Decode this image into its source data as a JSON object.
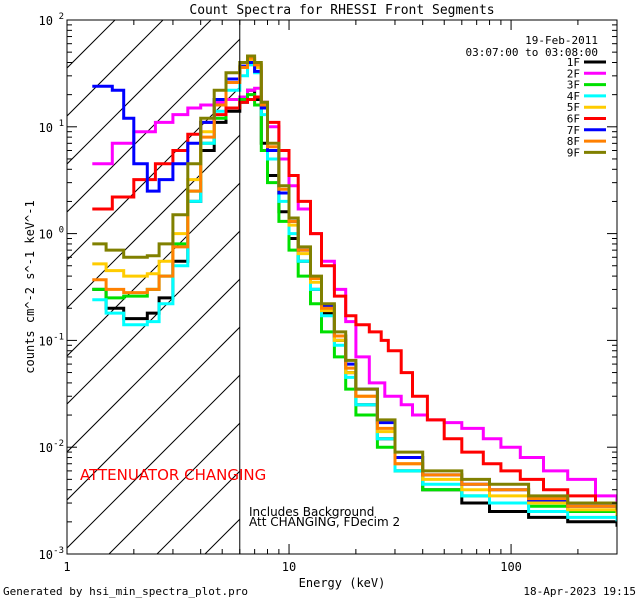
{
  "chart_data": {
    "type": "line",
    "title": "Count Spectra for RHESSI Front Segments",
    "date": "19-Feb-2011",
    "time_range": "03:07:00 to 03:08:00",
    "xlabel": "Energy (keV)",
    "ylabel": "counts cm^-2 s^-1 keV^-1",
    "xscale": "log",
    "yscale": "log",
    "xlim": [
      1,
      300
    ],
    "ylim": [
      0.001,
      100
    ],
    "x_ticks": [
      {
        "value": 1,
        "label": "1"
      },
      {
        "value": 10,
        "label": "10"
      },
      {
        "value": 100,
        "label": "100"
      }
    ],
    "y_ticks": [
      {
        "value": 0.001,
        "base": "10",
        "exp": "-3"
      },
      {
        "value": 0.01,
        "base": "10",
        "exp": "-2"
      },
      {
        "value": 0.1,
        "base": "10",
        "exp": "-1"
      },
      {
        "value": 1,
        "base": "10",
        "exp": "0"
      },
      {
        "value": 10,
        "base": "10",
        "exp": "1"
      },
      {
        "value": 100,
        "base": "10",
        "exp": "2"
      }
    ],
    "shaded_region_keV": [
      1,
      6
    ],
    "vertical_line_keV": 6,
    "annotations": {
      "attenuator": "ATTENUATOR CHANGING",
      "background": "Includes Background",
      "att_info": "Att CHANGING, FDecim 2"
    },
    "series": [
      {
        "name": "1F",
        "color": "#000000",
        "points": [
          [
            1.3,
            0.3
          ],
          [
            1.5,
            0.2
          ],
          [
            1.8,
            0.16
          ],
          [
            2.3,
            0.18
          ],
          [
            2.6,
            0.25
          ],
          [
            3.0,
            0.55
          ],
          [
            3.5,
            2.0
          ],
          [
            4,
            6
          ],
          [
            4.6,
            11
          ],
          [
            5.2,
            14
          ],
          [
            6,
            17
          ],
          [
            6.5,
            22
          ],
          [
            7,
            18
          ],
          [
            7.5,
            7
          ],
          [
            8,
            3.5
          ],
          [
            9,
            1.6
          ],
          [
            10,
            0.9
          ],
          [
            11,
            0.55
          ],
          [
            12.5,
            0.3
          ],
          [
            14,
            0.18
          ],
          [
            16,
            0.1
          ],
          [
            18,
            0.05
          ],
          [
            20,
            0.025
          ],
          [
            25,
            0.012
          ],
          [
            30,
            0.006
          ],
          [
            40,
            0.004
          ],
          [
            60,
            0.003
          ],
          [
            80,
            0.0025
          ],
          [
            120,
            0.0022
          ],
          [
            180,
            0.002
          ],
          [
            300,
            0.0018
          ]
        ]
      },
      {
        "name": "2F",
        "color": "#ff00ff",
        "points": [
          [
            1.3,
            4.5
          ],
          [
            1.6,
            7
          ],
          [
            2,
            9
          ],
          [
            2.5,
            11
          ],
          [
            3,
            13
          ],
          [
            3.5,
            15
          ],
          [
            4,
            16
          ],
          [
            4.6,
            17
          ],
          [
            5.2,
            18
          ],
          [
            6,
            19
          ],
          [
            6.5,
            22
          ],
          [
            7,
            23
          ],
          [
            7.5,
            17
          ],
          [
            8,
            10
          ],
          [
            9,
            5
          ],
          [
            10,
            2.8
          ],
          [
            11,
            1.7
          ],
          [
            12.5,
            1.0
          ],
          [
            14,
            0.55
          ],
          [
            16,
            0.3
          ],
          [
            18,
            0.15
          ],
          [
            20,
            0.07
          ],
          [
            23,
            0.04
          ],
          [
            27,
            0.03
          ],
          [
            32,
            0.025
          ],
          [
            36,
            0.02
          ],
          [
            42,
            0.018
          ],
          [
            50,
            0.017
          ],
          [
            60,
            0.015
          ],
          [
            75,
            0.012
          ],
          [
            90,
            0.01
          ],
          [
            110,
            0.008
          ],
          [
            140,
            0.006
          ],
          [
            180,
            0.005
          ],
          [
            240,
            0.0035
          ],
          [
            300,
            0.003
          ]
        ]
      },
      {
        "name": "3F",
        "color": "#00e000",
        "points": [
          [
            1.3,
            0.3
          ],
          [
            1.5,
            0.25
          ],
          [
            1.8,
            0.26
          ],
          [
            2.3,
            0.3
          ],
          [
            2.6,
            0.4
          ],
          [
            3.0,
            0.8
          ],
          [
            3.5,
            2.5
          ],
          [
            4,
            7
          ],
          [
            4.6,
            12
          ],
          [
            5.2,
            15
          ],
          [
            6,
            18
          ],
          [
            6.5,
            20
          ],
          [
            7,
            16
          ],
          [
            7.5,
            6
          ],
          [
            8,
            3
          ],
          [
            9,
            1.3
          ],
          [
            10,
            0.7
          ],
          [
            11,
            0.4
          ],
          [
            12.5,
            0.22
          ],
          [
            14,
            0.12
          ],
          [
            16,
            0.07
          ],
          [
            18,
            0.035
          ],
          [
            20,
            0.02
          ],
          [
            25,
            0.01
          ],
          [
            30,
            0.006
          ],
          [
            40,
            0.004
          ],
          [
            60,
            0.0035
          ],
          [
            80,
            0.003
          ],
          [
            120,
            0.0028
          ],
          [
            180,
            0.0025
          ],
          [
            300,
            0.0022
          ]
        ]
      },
      {
        "name": "4F",
        "color": "#00ffff",
        "points": [
          [
            1.3,
            0.24
          ],
          [
            1.5,
            0.18
          ],
          [
            1.8,
            0.14
          ],
          [
            2.3,
            0.15
          ],
          [
            2.6,
            0.22
          ],
          [
            3.0,
            0.5
          ],
          [
            3.5,
            2.0
          ],
          [
            4,
            7
          ],
          [
            4.6,
            14
          ],
          [
            5.2,
            22
          ],
          [
            6,
            30
          ],
          [
            6.5,
            38
          ],
          [
            7,
            32
          ],
          [
            7.5,
            13
          ],
          [
            8,
            5
          ],
          [
            9,
            2
          ],
          [
            10,
            1.0
          ],
          [
            11,
            0.55
          ],
          [
            12.5,
            0.3
          ],
          [
            14,
            0.17
          ],
          [
            16,
            0.09
          ],
          [
            18,
            0.045
          ],
          [
            20,
            0.025
          ],
          [
            25,
            0.012
          ],
          [
            30,
            0.006
          ],
          [
            40,
            0.0045
          ],
          [
            60,
            0.0035
          ],
          [
            80,
            0.003
          ],
          [
            120,
            0.0025
          ],
          [
            180,
            0.0022
          ],
          [
            300,
            0.002
          ]
        ]
      },
      {
        "name": "5F",
        "color": "#ffcc00",
        "points": [
          [
            1.3,
            0.52
          ],
          [
            1.5,
            0.45
          ],
          [
            1.8,
            0.4
          ],
          [
            2.3,
            0.42
          ],
          [
            2.6,
            0.55
          ],
          [
            3.0,
            1.0
          ],
          [
            3.5,
            3.2
          ],
          [
            4,
            9
          ],
          [
            4.6,
            18
          ],
          [
            5.2,
            28
          ],
          [
            6,
            36
          ],
          [
            6.5,
            42
          ],
          [
            7,
            36
          ],
          [
            7.5,
            15
          ],
          [
            8,
            6
          ],
          [
            9,
            2.4
          ],
          [
            10,
            1.2
          ],
          [
            11,
            0.65
          ],
          [
            12.5,
            0.35
          ],
          [
            14,
            0.19
          ],
          [
            16,
            0.1
          ],
          [
            18,
            0.05
          ],
          [
            20,
            0.03
          ],
          [
            25,
            0.014
          ],
          [
            30,
            0.007
          ],
          [
            40,
            0.005
          ],
          [
            60,
            0.004
          ],
          [
            80,
            0.0035
          ],
          [
            120,
            0.003
          ],
          [
            180,
            0.0026
          ],
          [
            300,
            0.0023
          ]
        ]
      },
      {
        "name": "6F",
        "color": "#ff0000",
        "points": [
          [
            1.3,
            1.7
          ],
          [
            1.6,
            2.2
          ],
          [
            2,
            3.2
          ],
          [
            2.5,
            4.5
          ],
          [
            3,
            6
          ],
          [
            3.5,
            8.5
          ],
          [
            4,
            11
          ],
          [
            4.6,
            13
          ],
          [
            5.2,
            15
          ],
          [
            6,
            17
          ],
          [
            6.5,
            18
          ],
          [
            7,
            19
          ],
          [
            7.5,
            16
          ],
          [
            8,
            11
          ],
          [
            9,
            6
          ],
          [
            10,
            3.5
          ],
          [
            11,
            2
          ],
          [
            12.5,
            1.0
          ],
          [
            14,
            0.5
          ],
          [
            16,
            0.26
          ],
          [
            18,
            0.17
          ],
          [
            20,
            0.14
          ],
          [
            23,
            0.12
          ],
          [
            26,
            0.1
          ],
          [
            28,
            0.08
          ],
          [
            32,
            0.05
          ],
          [
            36,
            0.03
          ],
          [
            42,
            0.018
          ],
          [
            50,
            0.012
          ],
          [
            60,
            0.009
          ],
          [
            75,
            0.007
          ],
          [
            90,
            0.006
          ],
          [
            110,
            0.005
          ],
          [
            140,
            0.004
          ],
          [
            180,
            0.0035
          ],
          [
            240,
            0.003
          ],
          [
            300,
            0.0028
          ]
        ]
      },
      {
        "name": "7F",
        "color": "#0000ff",
        "points": [
          [
            1.3,
            24
          ],
          [
            1.6,
            22
          ],
          [
            1.8,
            12
          ],
          [
            2,
            4.5
          ],
          [
            2.3,
            2.5
          ],
          [
            2.6,
            3.2
          ],
          [
            3.0,
            4.5
          ],
          [
            3.5,
            7
          ],
          [
            4,
            11
          ],
          [
            4.6,
            18
          ],
          [
            5.2,
            28
          ],
          [
            6,
            37
          ],
          [
            6.5,
            40
          ],
          [
            7,
            33
          ],
          [
            7.5,
            15
          ],
          [
            8,
            6
          ],
          [
            9,
            2.4
          ],
          [
            10,
            1.3
          ],
          [
            11,
            0.7
          ],
          [
            12.5,
            0.38
          ],
          [
            14,
            0.21
          ],
          [
            16,
            0.11
          ],
          [
            18,
            0.06
          ],
          [
            20,
            0.035
          ],
          [
            25,
            0.017
          ],
          [
            30,
            0.008
          ],
          [
            40,
            0.0055
          ],
          [
            60,
            0.0045
          ],
          [
            80,
            0.004
          ],
          [
            120,
            0.0032
          ],
          [
            180,
            0.0028
          ],
          [
            300,
            0.0025
          ]
        ]
      },
      {
        "name": "8F",
        "color": "#ff8000",
        "points": [
          [
            1.3,
            0.37
          ],
          [
            1.5,
            0.3
          ],
          [
            1.8,
            0.28
          ],
          [
            2.3,
            0.3
          ],
          [
            2.6,
            0.4
          ],
          [
            3.0,
            0.75
          ],
          [
            3.5,
            2.5
          ],
          [
            4,
            8
          ],
          [
            4.6,
            16
          ],
          [
            5.2,
            26
          ],
          [
            6,
            36
          ],
          [
            6.5,
            44
          ],
          [
            7,
            38
          ],
          [
            7.5,
            16
          ],
          [
            8,
            6.5
          ],
          [
            9,
            2.6
          ],
          [
            10,
            1.3
          ],
          [
            11,
            0.7
          ],
          [
            12.5,
            0.38
          ],
          [
            14,
            0.2
          ],
          [
            16,
            0.11
          ],
          [
            18,
            0.055
          ],
          [
            20,
            0.03
          ],
          [
            25,
            0.015
          ],
          [
            30,
            0.007
          ],
          [
            40,
            0.0055
          ],
          [
            60,
            0.0045
          ],
          [
            80,
            0.004
          ],
          [
            120,
            0.0033
          ],
          [
            180,
            0.0028
          ],
          [
            300,
            0.0025
          ]
        ]
      },
      {
        "name": "9F",
        "color": "#808000",
        "points": [
          [
            1.3,
            0.8
          ],
          [
            1.5,
            0.7
          ],
          [
            1.8,
            0.6
          ],
          [
            2.3,
            0.62
          ],
          [
            2.6,
            0.8
          ],
          [
            3.0,
            1.5
          ],
          [
            3.5,
            4.5
          ],
          [
            4,
            12
          ],
          [
            4.6,
            22
          ],
          [
            5.2,
            32
          ],
          [
            6,
            40
          ],
          [
            6.5,
            46
          ],
          [
            7,
            40
          ],
          [
            7.5,
            17
          ],
          [
            8,
            7
          ],
          [
            9,
            2.8
          ],
          [
            10,
            1.4
          ],
          [
            11,
            0.75
          ],
          [
            12.5,
            0.4
          ],
          [
            14,
            0.22
          ],
          [
            16,
            0.12
          ],
          [
            18,
            0.065
          ],
          [
            20,
            0.035
          ],
          [
            25,
            0.018
          ],
          [
            30,
            0.009
          ],
          [
            40,
            0.006
          ],
          [
            60,
            0.005
          ],
          [
            80,
            0.0045
          ],
          [
            120,
            0.0035
          ],
          [
            180,
            0.003
          ],
          [
            300,
            0.0026
          ]
        ]
      }
    ]
  },
  "footer": {
    "generated_by": "Generated by hsi_min_spectra_plot.pro",
    "date": "18-Apr-2023 19:15"
  }
}
